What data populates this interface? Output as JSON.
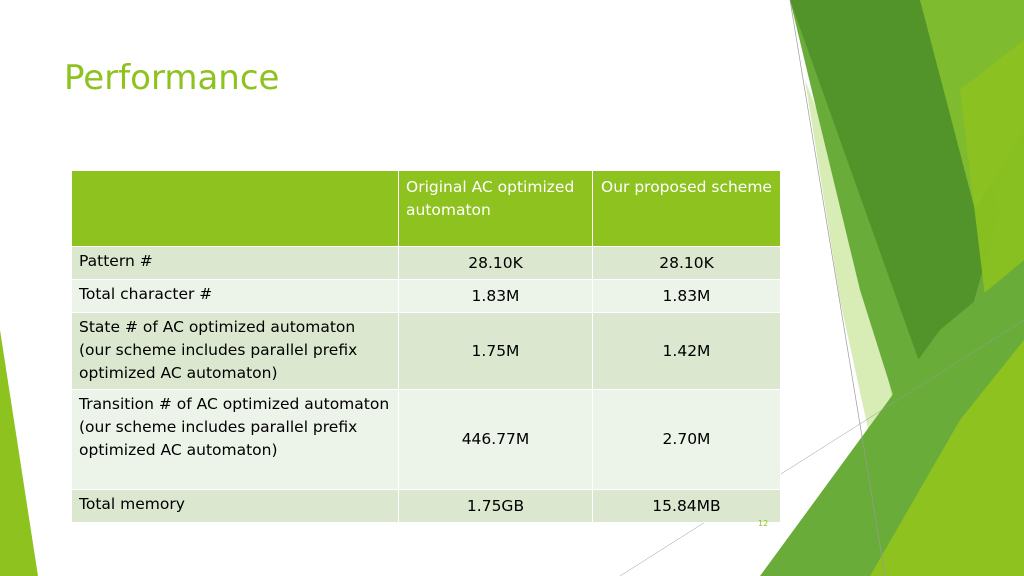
{
  "slide": {
    "title": "Performance",
    "page_number": "12"
  },
  "table": {
    "headers": [
      "",
      "Original AC optimized automaton",
      "Our proposed scheme"
    ],
    "rows": [
      {
        "label": "Pattern #",
        "original": "28.10K",
        "proposed": "28.10K"
      },
      {
        "label": "Total character #",
        "original": "1.83M",
        "proposed": "1.83M"
      },
      {
        "label_lines": [
          "State # of  AC optimized automaton",
          "(our scheme includes parallel prefix optimized AC automaton)"
        ],
        "original": "1.75M",
        "proposed": "1.42M"
      },
      {
        "label_lines": [
          "Transition # of AC optimized automaton",
          "(our scheme includes parallel prefix optimized AC automaton)"
        ],
        "original": "446.77M",
        "proposed": "2.70M"
      },
      {
        "label": "Total memory",
        "original": "1.75GB",
        "proposed": "15.84MB"
      }
    ]
  },
  "colors": {
    "accent": "#8dc21f",
    "header_bg": "#8dc21f",
    "row_odd": "#dbe8cf",
    "row_even": "#ecf3e8",
    "facet_dark": "#4f8f28",
    "facet_mid": "#6aac3a",
    "facet_light": "#a9d45b"
  }
}
